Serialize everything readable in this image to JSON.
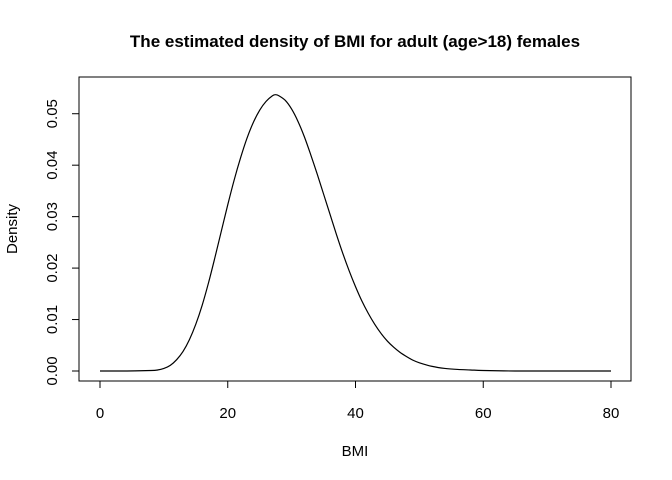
{
  "chart_data": {
    "type": "line",
    "title": "The estimated density of BMI for adult (age>18) females",
    "xlabel": "BMI",
    "ylabel": "Density",
    "xlim": [
      0,
      80
    ],
    "ylim": [
      0,
      0.055
    ],
    "x_ticks": [
      0,
      20,
      40,
      60,
      80
    ],
    "x_tick_labels": [
      "0",
      "20",
      "40",
      "60",
      "80"
    ],
    "y_ticks": [
      0,
      0.01,
      0.02,
      0.03,
      0.04,
      0.05
    ],
    "y_tick_labels": [
      "0.00",
      "0.01",
      "0.02",
      "0.03",
      "0.04",
      "0.05"
    ],
    "grid": false,
    "legend": "none",
    "line_color": "#000000",
    "series": [
      {
        "x": [
          0,
          4,
          8,
          9,
          10,
          11,
          12,
          13,
          14,
          15,
          16,
          17,
          18,
          19,
          20,
          21,
          22,
          23,
          24,
          25,
          26,
          27,
          27.5,
          28,
          29,
          30,
          31,
          32,
          33,
          34,
          35,
          36,
          37,
          38,
          39,
          40,
          41,
          42,
          43,
          44,
          45,
          46,
          47,
          48,
          49,
          50,
          52,
          54,
          56,
          58,
          60,
          65,
          70,
          75,
          80
        ],
        "y": [
          0,
          0,
          0.0001,
          0.0002,
          0.0005,
          0.0011,
          0.0022,
          0.0038,
          0.0061,
          0.0091,
          0.0128,
          0.0172,
          0.0221,
          0.0272,
          0.0323,
          0.0371,
          0.0414,
          0.0452,
          0.0483,
          0.0507,
          0.0524,
          0.0535,
          0.0537,
          0.0535,
          0.0526,
          0.0509,
          0.0485,
          0.0455,
          0.042,
          0.0383,
          0.0344,
          0.0305,
          0.0266,
          0.0229,
          0.0195,
          0.0164,
          0.0136,
          0.0112,
          0.0091,
          0.0073,
          0.0058,
          0.0046,
          0.0036,
          0.0028,
          0.0021,
          0.0016,
          0.0009,
          0.0005,
          0.0003,
          0.0002,
          0.0001,
          0,
          0,
          0,
          0
        ]
      }
    ]
  }
}
